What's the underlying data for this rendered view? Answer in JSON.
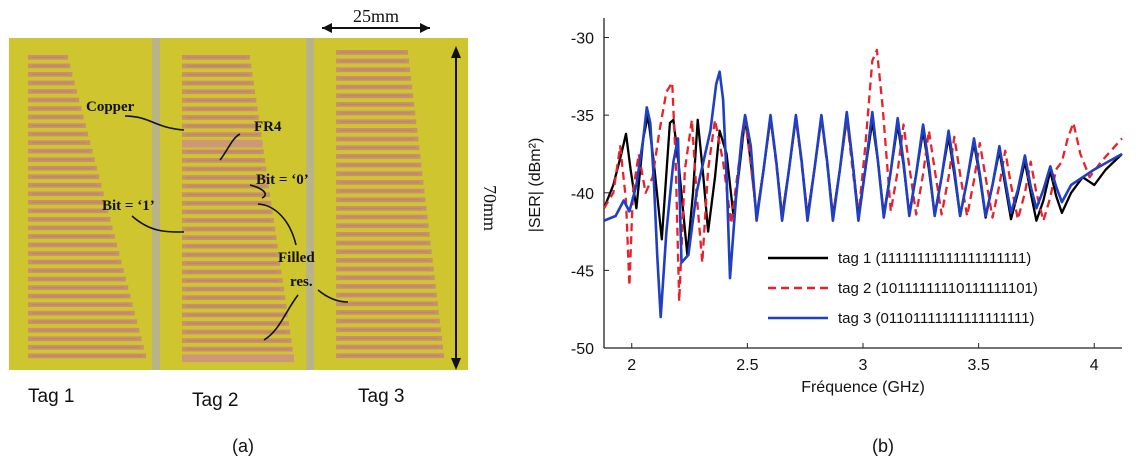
{
  "panel_a": {
    "tag_labels": [
      "Tag 1",
      "Tag 2",
      "Tag 3"
    ],
    "annotations": {
      "copper": "Copper",
      "fr4": "FR4",
      "bit0": "Bit = ‘0’",
      "bit1": "Bit = ‘1’",
      "filled1": "Filled",
      "filled2": "res.",
      "dim_width": "25mm",
      "dim_height": "70mm"
    },
    "colors": {
      "substrate": "#cfc52e",
      "copper": "#c8906f",
      "gap": "#b4b08a"
    },
    "caption": "(a)"
  },
  "panel_b": {
    "caption": "(b)"
  },
  "chart_data": {
    "type": "line",
    "title": "",
    "xlabel": "Fréquence (GHz)",
    "ylabel": "|SER| (dBm²)",
    "xlim": [
      1.88,
      4.12
    ],
    "ylim": [
      -50,
      -29
    ],
    "xticks": [
      2,
      2.5,
      3,
      3.5,
      4
    ],
    "xtick_labels": [
      "2",
      "2.5",
      "3",
      "3.5",
      "4"
    ],
    "yticks": [
      -30,
      -35,
      -40,
      -45,
      -50
    ],
    "ytick_labels": [
      "-30",
      "-35",
      "-40",
      "-45",
      "-50"
    ],
    "grid": false,
    "legend_position": "lower-right",
    "series": [
      {
        "name": "tag 1 (11111111111111111111)",
        "color": "#000000",
        "dash": "solid",
        "x": [
          1.88,
          1.92,
          1.955,
          1.975,
          1.995,
          2.02,
          2.05,
          2.07,
          2.095,
          2.13,
          2.165,
          2.18,
          2.205,
          2.24,
          2.265,
          2.285,
          2.31,
          2.33,
          2.36,
          2.38,
          2.41,
          2.44,
          2.465,
          2.49,
          2.515,
          2.54,
          2.57,
          2.6,
          2.625,
          2.65,
          2.68,
          2.71,
          2.735,
          2.76,
          2.79,
          2.82,
          2.845,
          2.87,
          2.9,
          2.93,
          2.955,
          2.98,
          3.01,
          3.04,
          3.065,
          3.09,
          3.12,
          3.15,
          3.175,
          3.2,
          3.23,
          3.26,
          3.285,
          3.31,
          3.34,
          3.37,
          3.395,
          3.42,
          3.45,
          3.48,
          3.505,
          3.53,
          3.56,
          3.59,
          3.615,
          3.64,
          3.67,
          3.7,
          3.725,
          3.75,
          3.78,
          3.81,
          3.835,
          3.86,
          3.9,
          3.95,
          4.0,
          4.05,
          4.12
        ],
        "y": [
          -41,
          -39.5,
          -37.5,
          -36.2,
          -38.5,
          -41.0,
          -36.5,
          -35.0,
          -38.0,
          -43.0,
          -35.5,
          -35.3,
          -38.5,
          -44.0,
          -40.0,
          -35.3,
          -39.0,
          -42.5,
          -39.0,
          -36.0,
          -37.5,
          -41.5,
          -38.5,
          -35.2,
          -38.0,
          -41.5,
          -38.5,
          -35.2,
          -38.0,
          -41.5,
          -38.5,
          -35.2,
          -38.0,
          -41.5,
          -38.5,
          -35.2,
          -38.0,
          -41.5,
          -38.5,
          -35.2,
          -38.0,
          -41.5,
          -38.5,
          -35.4,
          -38.0,
          -41.4,
          -38.6,
          -35.6,
          -38.2,
          -41.4,
          -38.8,
          -36.0,
          -38.5,
          -41.4,
          -39.0,
          -36.4,
          -38.8,
          -41.5,
          -39.2,
          -36.8,
          -39.0,
          -41.6,
          -39.5,
          -37.3,
          -39.5,
          -41.7,
          -40.0,
          -38.0,
          -40.0,
          -41.8,
          -40.5,
          -38.6,
          -40.2,
          -41.3,
          -40.0,
          -39.0,
          -39.5,
          -38.5,
          -37.5
        ]
      },
      {
        "name": "tag 2 (10111111110111111101)",
        "color": "#e8212a",
        "dash": "dashed",
        "x": [
          1.88,
          1.92,
          1.95,
          1.975,
          1.99,
          2.005,
          2.03,
          2.06,
          2.09,
          2.12,
          2.15,
          2.175,
          2.19,
          2.205,
          2.23,
          2.26,
          2.28,
          2.305,
          2.33,
          2.36,
          2.395,
          2.43,
          2.46,
          2.49,
          2.515,
          2.54,
          2.57,
          2.6,
          2.625,
          2.65,
          2.68,
          2.71,
          2.735,
          2.76,
          2.79,
          2.82,
          2.845,
          2.87,
          2.9,
          2.93,
          2.955,
          2.98,
          3.01,
          3.04,
          3.06,
          3.085,
          3.12,
          3.15,
          3.175,
          3.2,
          3.23,
          3.26,
          3.285,
          3.31,
          3.34,
          3.37,
          3.395,
          3.42,
          3.45,
          3.48,
          3.505,
          3.53,
          3.56,
          3.59,
          3.615,
          3.64,
          3.67,
          3.7,
          3.725,
          3.75,
          3.78,
          3.81,
          3.835,
          3.86,
          3.885,
          3.91,
          3.94,
          3.98,
          4.03,
          4.12
        ],
        "y": [
          -41,
          -40,
          -37.0,
          -40.5,
          -46.0,
          -40.0,
          -37.5,
          -40.0,
          -39.0,
          -36.0,
          -33.5,
          -32.9,
          -38.0,
          -47.0,
          -38.5,
          -35.3,
          -40.0,
          -44.5,
          -38.5,
          -35.3,
          -38.0,
          -42.0,
          -38.5,
          -35.2,
          -38.2,
          -41.5,
          -38.5,
          -35.2,
          -38.2,
          -41.5,
          -38.5,
          -35.2,
          -38.2,
          -41.5,
          -38.5,
          -35.2,
          -38.2,
          -41.5,
          -38.5,
          -35.2,
          -38.5,
          -41.5,
          -37.0,
          -31.5,
          -30.8,
          -34.5,
          -41.2,
          -38.6,
          -35.6,
          -38.3,
          -41.4,
          -38.8,
          -36.0,
          -38.5,
          -41.4,
          -39.0,
          -36.4,
          -38.8,
          -41.5,
          -39.2,
          -36.8,
          -39.0,
          -41.6,
          -39.5,
          -37.3,
          -39.5,
          -41.7,
          -40.0,
          -38.0,
          -40.0,
          -41.8,
          -40.3,
          -38.5,
          -38.0,
          -36.5,
          -35.5,
          -37.5,
          -39.0,
          -38.0,
          -36.5
        ]
      },
      {
        "name": "tag 3 (01101111111111111111)",
        "color": "#1f3fc4",
        "dash": "solid",
        "x": [
          1.88,
          1.93,
          1.965,
          1.99,
          2.02,
          2.05,
          2.065,
          2.08,
          2.095,
          2.11,
          2.125,
          2.15,
          2.18,
          2.2,
          2.215,
          2.245,
          2.28,
          2.31,
          2.34,
          2.365,
          2.38,
          2.395,
          2.41,
          2.425,
          2.45,
          2.475,
          2.49,
          2.515,
          2.54,
          2.57,
          2.6,
          2.625,
          2.65,
          2.68,
          2.71,
          2.735,
          2.76,
          2.79,
          2.82,
          2.845,
          2.87,
          2.9,
          2.93,
          2.955,
          2.98,
          3.01,
          3.04,
          3.065,
          3.09,
          3.12,
          3.15,
          3.175,
          3.2,
          3.23,
          3.26,
          3.285,
          3.31,
          3.34,
          3.37,
          3.395,
          3.42,
          3.45,
          3.48,
          3.505,
          3.53,
          3.56,
          3.59,
          3.615,
          3.64,
          3.67,
          3.7,
          3.725,
          3.75,
          3.78,
          3.81,
          3.835,
          3.86,
          3.9,
          3.95,
          4.0,
          4.06,
          4.12
        ],
        "y": [
          -41.8,
          -41.5,
          -40.5,
          -41.2,
          -39.5,
          -36.5,
          -34.5,
          -35.5,
          -39.0,
          -44.0,
          -48.0,
          -42.5,
          -38.0,
          -36.5,
          -44.5,
          -44.0,
          -40.0,
          -38.0,
          -36.0,
          -33.0,
          -32.2,
          -34.0,
          -39.0,
          -45.5,
          -40.5,
          -36.5,
          -35.0,
          -37.0,
          -41.8,
          -38.5,
          -35.0,
          -38.0,
          -41.8,
          -38.5,
          -35.0,
          -38.0,
          -41.8,
          -38.5,
          -35.0,
          -38.0,
          -41.8,
          -38.5,
          -34.8,
          -38.0,
          -41.8,
          -38.5,
          -34.8,
          -38.0,
          -41.6,
          -38.6,
          -35.2,
          -38.0,
          -41.5,
          -38.8,
          -35.6,
          -38.2,
          -41.5,
          -39.0,
          -36.0,
          -38.5,
          -41.5,
          -39.2,
          -36.5,
          -38.8,
          -41.5,
          -39.5,
          -37.0,
          -39.2,
          -41.3,
          -39.8,
          -37.6,
          -39.6,
          -41.0,
          -39.8,
          -38.3,
          -39.6,
          -40.6,
          -39.5,
          -39.0,
          -38.5,
          -38.0,
          -37.5
        ]
      }
    ]
  }
}
